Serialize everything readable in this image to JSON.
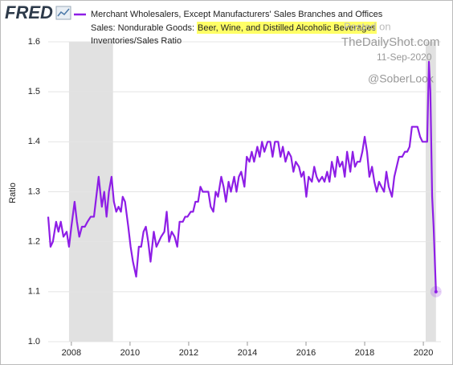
{
  "logo": "FRED",
  "chart_data": {
    "type": "line",
    "subtitle": "Sales: Nondurable Goods:",
    "highlight": "Beer, Wine, and Distilled Alcoholic Beverages",
    "units": "Inventories/Sales Ratio",
    "ylabel": "Ratio",
    "x": [
      2007.21,
      2007.29,
      2007.37,
      2007.48,
      2007.56,
      2007.64,
      2007.73,
      2007.84,
      2007.92,
      2008,
      2008.11,
      2008.19,
      2008.27,
      2008.36,
      2008.46,
      2008.55,
      2008.66,
      2008.77,
      2008.85,
      2008.93,
      2009.04,
      2009.12,
      2009.2,
      2009.28,
      2009.37,
      2009.45,
      2009.53,
      2009.61,
      2009.69,
      2009.75,
      2009.83,
      2009.94,
      2010.02,
      2010.1,
      2010.21,
      2010.3,
      2010.38,
      2010.46,
      2010.54,
      2010.62,
      2010.7,
      2010.81,
      2010.9,
      2010.98,
      2011.06,
      2011.17,
      2011.25,
      2011.33,
      2011.42,
      2011.52,
      2011.61,
      2011.69,
      2011.8,
      2011.88,
      2011.96,
      2012.07,
      2012.15,
      2012.23,
      2012.32,
      2012.4,
      2012.48,
      2012.56,
      2012.67,
      2012.75,
      2012.84,
      2012.92,
      2013,
      2013.11,
      2013.19,
      2013.27,
      2013.36,
      2013.44,
      2013.55,
      2013.63,
      2013.71,
      2013.79,
      2013.9,
      2013.98,
      2014.07,
      2014.15,
      2014.23,
      2014.34,
      2014.42,
      2014.5,
      2014.58,
      2014.69,
      2014.78,
      2014.86,
      2014.94,
      2015.05,
      2015.13,
      2015.21,
      2015.3,
      2015.4,
      2015.49,
      2015.57,
      2015.65,
      2015.76,
      2015.84,
      2015.92,
      2016.01,
      2016.09,
      2016.2,
      2016.28,
      2016.36,
      2016.44,
      2016.55,
      2016.63,
      2016.72,
      2016.8,
      2016.88,
      2016.99,
      2017.07,
      2017.15,
      2017.24,
      2017.32,
      2017.4,
      2017.51,
      2017.59,
      2017.67,
      2017.75,
      2017.84,
      2017.92,
      2018,
      2018.08,
      2018.16,
      2018.25,
      2018.33,
      2018.41,
      2018.49,
      2018.57,
      2018.66,
      2018.74,
      2018.82,
      2018.93,
      2019.01,
      2019.09,
      2019.17,
      2019.28,
      2019.37,
      2019.45,
      2019.53,
      2019.61,
      2019.72,
      2019.8,
      2019.89,
      2019.97,
      2020.05,
      2020.13,
      2020.19,
      2020.24,
      2020.3,
      2020.35,
      2020.43
    ],
    "series": [
      {
        "name": "Merchant Wholesalers, Except Manufacturers' Sales Branches and Offices",
        "color": "#8e1ee6",
        "values": [
          1.25,
          1.19,
          1.2,
          1.24,
          1.22,
          1.24,
          1.21,
          1.22,
          1.19,
          1.23,
          1.28,
          1.24,
          1.21,
          1.23,
          1.23,
          1.24,
          1.25,
          1.25,
          1.29,
          1.33,
          1.27,
          1.3,
          1.25,
          1.3,
          1.33,
          1.28,
          1.26,
          1.27,
          1.26,
          1.29,
          1.28,
          1.23,
          1.19,
          1.16,
          1.13,
          1.19,
          1.19,
          1.22,
          1.23,
          1.2,
          1.16,
          1.22,
          1.19,
          1.2,
          1.21,
          1.22,
          1.26,
          1.2,
          1.22,
          1.21,
          1.19,
          1.24,
          1.24,
          1.25,
          1.25,
          1.26,
          1.26,
          1.28,
          1.28,
          1.31,
          1.3,
          1.3,
          1.3,
          1.27,
          1.26,
          1.3,
          1.29,
          1.33,
          1.31,
          1.28,
          1.32,
          1.3,
          1.33,
          1.3,
          1.33,
          1.34,
          1.31,
          1.37,
          1.36,
          1.38,
          1.36,
          1.39,
          1.37,
          1.4,
          1.38,
          1.4,
          1.4,
          1.37,
          1.4,
          1.4,
          1.37,
          1.39,
          1.36,
          1.38,
          1.37,
          1.34,
          1.36,
          1.35,
          1.33,
          1.34,
          1.29,
          1.33,
          1.32,
          1.35,
          1.33,
          1.32,
          1.33,
          1.32,
          1.34,
          1.32,
          1.36,
          1.33,
          1.37,
          1.35,
          1.36,
          1.33,
          1.38,
          1.34,
          1.38,
          1.35,
          1.36,
          1.36,
          1.38,
          1.41,
          1.38,
          1.33,
          1.35,
          1.32,
          1.3,
          1.32,
          1.31,
          1.3,
          1.34,
          1.31,
          1.29,
          1.33,
          1.35,
          1.37,
          1.37,
          1.38,
          1.38,
          1.39,
          1.43,
          1.43,
          1.43,
          1.41,
          1.4,
          1.4,
          1.4,
          1.56,
          1.5,
          1.29,
          1.23,
          1.1
        ]
      }
    ],
    "recessions": [
      [
        2007.92,
        2009.42
      ],
      [
        2020.08,
        2020.43
      ]
    ],
    "xlim": [
      2007.21,
      2020.6
    ],
    "xticks": [
      2008,
      2010,
      2012,
      2014,
      2016,
      2018,
      2020
    ],
    "ylim": [
      1.0,
      1.6
    ],
    "yticks": [
      {
        "value": 1.0,
        "label": "1.0"
      },
      1.1,
      1.2,
      1.3,
      1.4,
      1.5,
      1.6
    ],
    "grid": true
  },
  "watermark": {
    "posted": "Posted on",
    "site": "TheDailyShot.com",
    "date": "11-Sep-2020",
    "handle": "@SoberLook"
  }
}
